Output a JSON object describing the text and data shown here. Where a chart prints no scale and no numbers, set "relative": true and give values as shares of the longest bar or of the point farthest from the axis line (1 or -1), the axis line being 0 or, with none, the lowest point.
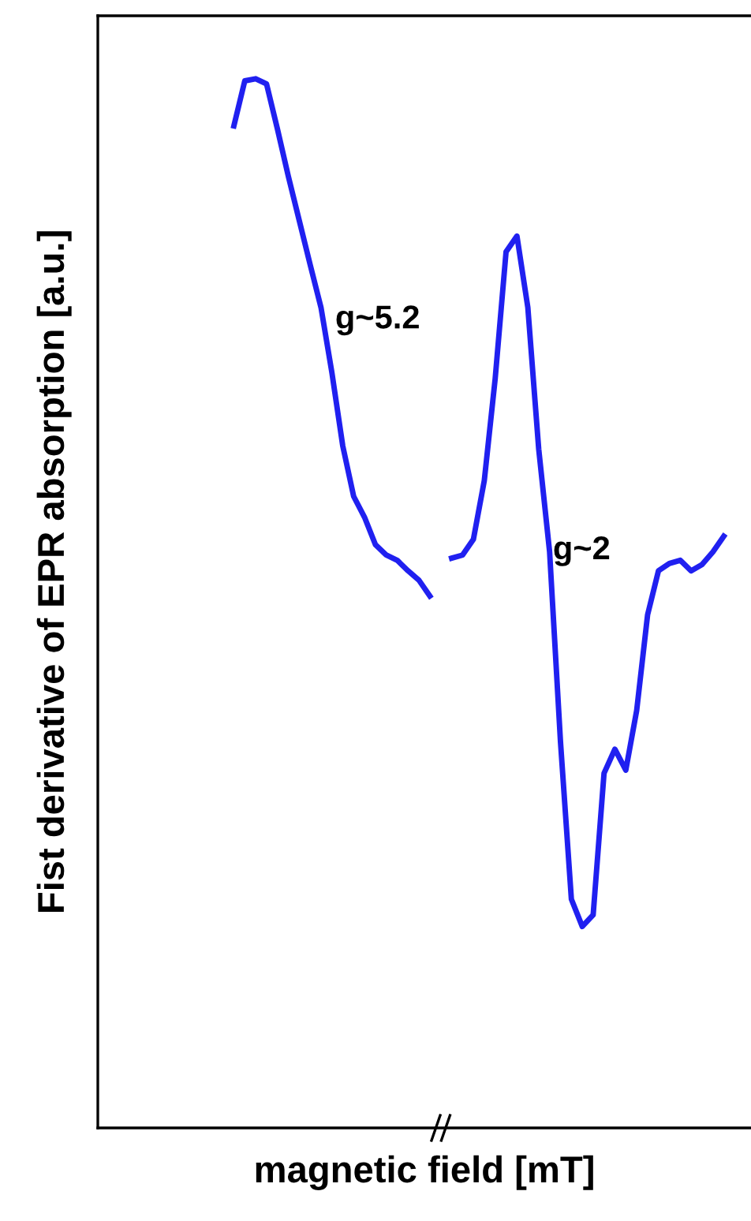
{
  "chart_data": {
    "type": "line",
    "relative": true,
    "xlabel": "magnetic field [mT]",
    "ylabel": "Fist derivative of EPR absorption [a.u.]",
    "categories": [
      null,
      null,
      null,
      null,
      null,
      null,
      null,
      null,
      null,
      null,
      null,
      null,
      null,
      null,
      null,
      null,
      null,
      null,
      null,
      null,
      null,
      null,
      null,
      null,
      null,
      null,
      null,
      null,
      null,
      null,
      null,
      null,
      null,
      null,
      null,
      null,
      null,
      null,
      null,
      null,
      null,
      null,
      null,
      null,
      null,
      null,
      null,
      null,
      null,
      null,
      null,
      null,
      null,
      null,
      null,
      null,
      null,
      null,
      null,
      null
    ],
    "series": [
      {
        "color": "#2020f0",
        "values": [
          null,
          null,
          null,
          null,
          null,
          null,
          null,
          null,
          null,
          null,
          null,
          null,
          0.955,
          0.998,
          1.0,
          0.995,
          0.952,
          0.907,
          0.865,
          0.823,
          0.782,
          0.72,
          0.65,
          0.602,
          0.582,
          0.556,
          0.546,
          0.541,
          0.531,
          0.522,
          0.507,
          null,
          null,
          null,
          null,
          null,
          null,
          null,
          null,
          null,
          null,
          null,
          null,
          null,
          null,
          null,
          null,
          null,
          null,
          null,
          null,
          null,
          null,
          null,
          null,
          null,
          null,
          null,
          null,
          null
        ]
      },
      {
        "color": "#2020f0",
        "values": [
          null,
          null,
          null,
          null,
          null,
          null,
          null,
          null,
          null,
          null,
          null,
          null,
          null,
          null,
          null,
          null,
          null,
          null,
          null,
          null,
          null,
          null,
          null,
          null,
          null,
          null,
          null,
          null,
          null,
          null,
          null,
          null,
          0.543,
          0.546,
          0.561,
          0.617,
          0.714,
          0.835,
          0.85,
          0.782,
          0.647,
          0.549,
          0.368,
          0.218,
          0.192,
          0.203,
          0.338,
          0.361,
          0.341,
          0.398,
          0.489,
          0.531,
          0.538,
          0.541,
          0.531,
          0.537,
          0.549,
          0.564,
          null,
          null
        ]
      }
    ],
    "annotations": [
      "g~5.2",
      "g~2"
    ],
    "grid": false,
    "legend": false,
    "marker": "none",
    "line_style": "solid"
  }
}
